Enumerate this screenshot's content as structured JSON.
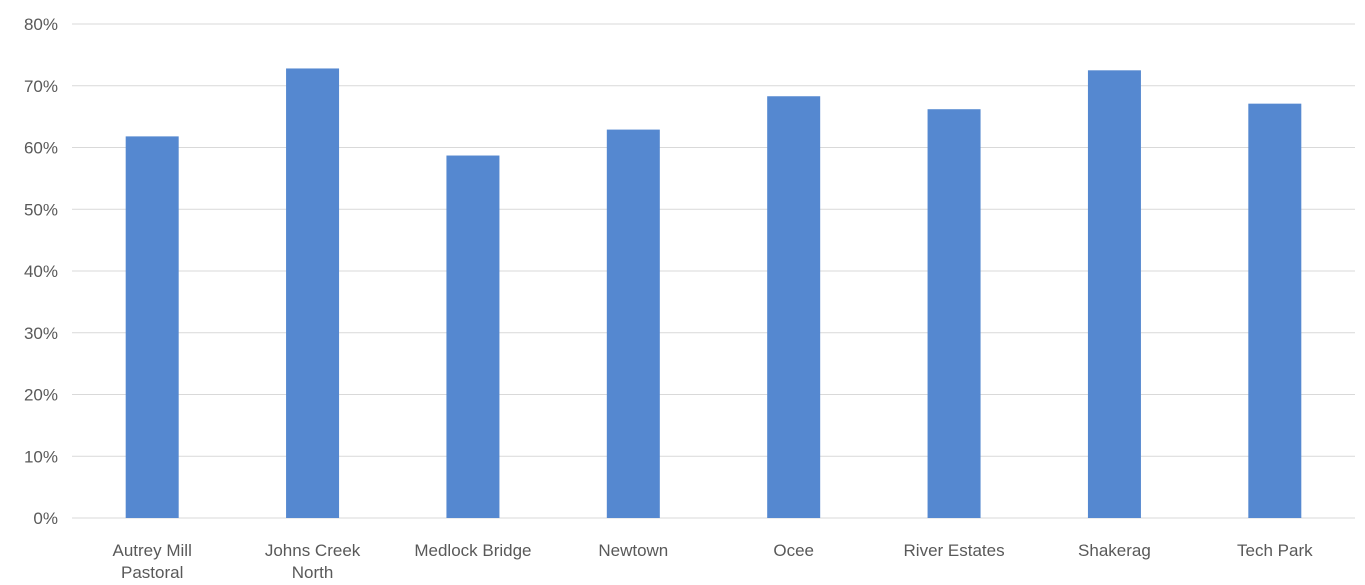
{
  "chart_data": {
    "type": "bar",
    "categories": [
      [
        "Autrey Mill",
        "Pastoral"
      ],
      [
        "Johns Creek",
        "North"
      ],
      [
        "Medlock Bridge"
      ],
      [
        "Newtown"
      ],
      [
        "Ocee"
      ],
      [
        "River Estates"
      ],
      [
        "Shakerag"
      ],
      [
        "Tech Park"
      ]
    ],
    "values": [
      61.8,
      72.8,
      58.7,
      62.9,
      68.3,
      66.2,
      72.5,
      67.1
    ],
    "ylim": [
      0,
      80
    ],
    "yticks": [
      0,
      10,
      20,
      30,
      40,
      50,
      60,
      70,
      80
    ],
    "ytick_format": "%",
    "grid": true,
    "bar_color": "#5588d0",
    "grid_color": "#d9d9d9"
  }
}
